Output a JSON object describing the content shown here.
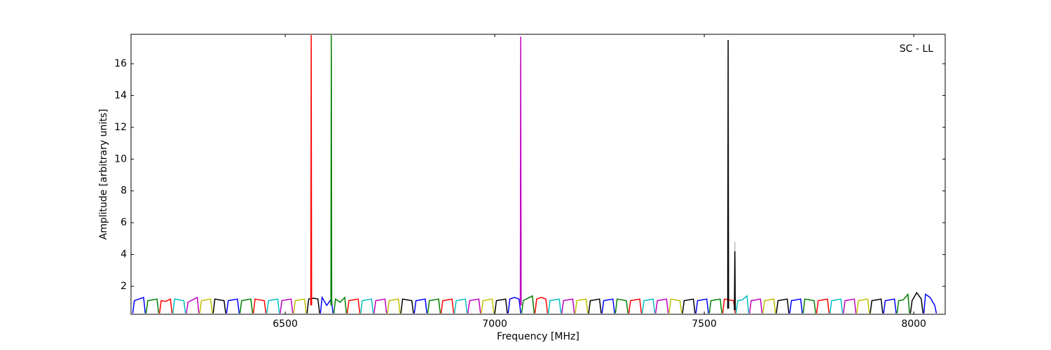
{
  "chart_data": {
    "type": "line",
    "xlabel": "Frequency [MHz]",
    "ylabel": "Amplitude [arbitrary units]",
    "annotation": "SC - LL",
    "xlim": [
      6132,
      8075
    ],
    "ylim": [
      0.24,
      17.85
    ],
    "xticks": [
      6500,
      7000,
      7500,
      8000
    ],
    "yticks": [
      2,
      4,
      6,
      8,
      10,
      12,
      14,
      16
    ],
    "series": [
      {
        "color": "#0000ff",
        "x": [
          6136,
          6140,
          6151,
          6162,
          6166
        ],
        "values": [
          0.3,
          1.1,
          1.2,
          1.3,
          0.3
        ]
      },
      {
        "color": "#008000",
        "x": [
          6168,
          6172,
          6183,
          6194,
          6198
        ],
        "values": [
          0.3,
          1.1,
          1.15,
          1.2,
          0.3
        ]
      },
      {
        "color": "#ff0000",
        "x": [
          6200,
          6204,
          6215,
          6226,
          6230
        ],
        "values": [
          0.3,
          1.1,
          1.05,
          1.2,
          0.3
        ]
      },
      {
        "color": "#00bfbf",
        "x": [
          6232,
          6236,
          6247,
          6258,
          6262
        ],
        "values": [
          0.3,
          1.2,
          1.15,
          1.1,
          0.3
        ]
      },
      {
        "color": "#bf00bf",
        "x": [
          6264,
          6268,
          6279,
          6290,
          6294
        ],
        "values": [
          0.3,
          1.0,
          1.15,
          1.3,
          0.3
        ]
      },
      {
        "color": "#bfbf00",
        "x": [
          6296,
          6300,
          6311,
          6322,
          6326
        ],
        "values": [
          0.3,
          1.1,
          1.15,
          1.2,
          0.3
        ]
      },
      {
        "color": "#000000",
        "x": [
          6328,
          6332,
          6343,
          6354,
          6358
        ],
        "values": [
          0.3,
          1.2,
          1.15,
          1.1,
          0.3
        ]
      },
      {
        "color": "#0000ff",
        "x": [
          6360,
          6364,
          6375,
          6386,
          6390
        ],
        "values": [
          0.3,
          1.1,
          1.15,
          1.2,
          0.3
        ]
      },
      {
        "color": "#008000",
        "x": [
          6392,
          6396,
          6407,
          6418,
          6422
        ],
        "values": [
          0.3,
          1.1,
          1.15,
          1.2,
          0.3
        ]
      },
      {
        "color": "#ff0000",
        "x": [
          6424,
          6428,
          6439,
          6450,
          6454
        ],
        "values": [
          0.3,
          1.2,
          1.15,
          1.1,
          0.3
        ]
      },
      {
        "color": "#00bfbf",
        "x": [
          6456,
          6460,
          6471,
          6482,
          6486
        ],
        "values": [
          0.3,
          1.1,
          1.15,
          1.2,
          0.3
        ]
      },
      {
        "color": "#bf00bf",
        "x": [
          6488,
          6492,
          6503,
          6514,
          6518
        ],
        "values": [
          0.3,
          1.1,
          1.15,
          1.2,
          0.3
        ]
      },
      {
        "color": "#bfbf00",
        "x": [
          6520,
          6524,
          6535,
          6546,
          6550
        ],
        "values": [
          0.3,
          1.1,
          1.15,
          1.2,
          0.3
        ]
      },
      {
        "color": "#000000",
        "x": [
          6552,
          6556,
          6567,
          6578,
          6582
        ],
        "values": [
          0.3,
          1.2,
          1.25,
          1.2,
          0.3
        ]
      },
      {
        "color": "#0000ff",
        "x": [
          6584,
          6588,
          6599,
          6610,
          6614
        ],
        "values": [
          0.3,
          1.3,
          0.8,
          1.2,
          0.3
        ]
      },
      {
        "color": "#008000",
        "x": [
          6616,
          6620,
          6631,
          6642,
          6646
        ],
        "values": [
          0.3,
          1.2,
          1.0,
          1.3,
          0.3
        ]
      },
      {
        "color": "#ff0000",
        "x": [
          6648,
          6652,
          6663,
          6674,
          6678
        ],
        "values": [
          0.3,
          1.1,
          1.15,
          1.2,
          0.3
        ]
      },
      {
        "color": "#00bfbf",
        "x": [
          6680,
          6684,
          6695,
          6706,
          6710
        ],
        "values": [
          0.3,
          1.1,
          1.15,
          1.2,
          0.3
        ]
      },
      {
        "color": "#bf00bf",
        "x": [
          6712,
          6716,
          6727,
          6738,
          6742
        ],
        "values": [
          0.3,
          1.1,
          1.15,
          1.2,
          0.3
        ]
      },
      {
        "color": "#bfbf00",
        "x": [
          6744,
          6748,
          6759,
          6770,
          6774
        ],
        "values": [
          0.3,
          1.1,
          1.15,
          1.2,
          0.3
        ]
      },
      {
        "color": "#000000",
        "x": [
          6776,
          6780,
          6791,
          6802,
          6806
        ],
        "values": [
          0.3,
          1.2,
          1.15,
          1.1,
          0.3
        ]
      },
      {
        "color": "#0000ff",
        "x": [
          6808,
          6812,
          6823,
          6834,
          6838
        ],
        "values": [
          0.3,
          1.1,
          1.15,
          1.2,
          0.3
        ]
      },
      {
        "color": "#008000",
        "x": [
          6840,
          6844,
          6855,
          6866,
          6870
        ],
        "values": [
          0.3,
          1.1,
          1.15,
          1.2,
          0.3
        ]
      },
      {
        "color": "#ff0000",
        "x": [
          6872,
          6876,
          6887,
          6898,
          6902
        ],
        "values": [
          0.3,
          1.1,
          1.15,
          1.2,
          0.3
        ]
      },
      {
        "color": "#00bfbf",
        "x": [
          6904,
          6908,
          6919,
          6930,
          6934
        ],
        "values": [
          0.3,
          1.1,
          1.15,
          1.2,
          0.3
        ]
      },
      {
        "color": "#bf00bf",
        "x": [
          6936,
          6940,
          6951,
          6962,
          6966
        ],
        "values": [
          0.3,
          1.1,
          1.15,
          1.2,
          0.3
        ]
      },
      {
        "color": "#bfbf00",
        "x": [
          6968,
          6972,
          6983,
          6994,
          6998
        ],
        "values": [
          0.3,
          1.1,
          1.15,
          1.2,
          0.3
        ]
      },
      {
        "color": "#000000",
        "x": [
          7000,
          7004,
          7015,
          7026,
          7030
        ],
        "values": [
          0.3,
          1.1,
          1.15,
          1.2,
          0.3
        ]
      },
      {
        "color": "#0000ff",
        "x": [
          7032,
          7036,
          7047,
          7058,
          7062
        ],
        "values": [
          0.3,
          1.2,
          1.3,
          1.2,
          0.3
        ]
      },
      {
        "color": "#008000",
        "x": [
          7064,
          7068,
          7079,
          7090,
          7094
        ],
        "values": [
          0.3,
          1.1,
          1.25,
          1.4,
          0.3
        ]
      },
      {
        "color": "#ff0000",
        "x": [
          7096,
          7100,
          7111,
          7122,
          7126
        ],
        "values": [
          0.3,
          1.2,
          1.3,
          1.2,
          0.3
        ]
      },
      {
        "color": "#00bfbf",
        "x": [
          7128,
          7132,
          7143,
          7154,
          7158
        ],
        "values": [
          0.3,
          1.1,
          1.15,
          1.2,
          0.3
        ]
      },
      {
        "color": "#bf00bf",
        "x": [
          7160,
          7164,
          7175,
          7186,
          7190
        ],
        "values": [
          0.3,
          1.1,
          1.15,
          1.2,
          0.3
        ]
      },
      {
        "color": "#bfbf00",
        "x": [
          7192,
          7196,
          7207,
          7218,
          7222
        ],
        "values": [
          0.3,
          1.1,
          1.15,
          1.2,
          0.3
        ]
      },
      {
        "color": "#000000",
        "x": [
          7224,
          7228,
          7239,
          7250,
          7254
        ],
        "values": [
          0.3,
          1.1,
          1.15,
          1.2,
          0.3
        ]
      },
      {
        "color": "#0000ff",
        "x": [
          7256,
          7260,
          7271,
          7282,
          7286
        ],
        "values": [
          0.3,
          1.1,
          1.15,
          1.2,
          0.3
        ]
      },
      {
        "color": "#008000",
        "x": [
          7288,
          7292,
          7303,
          7314,
          7318
        ],
        "values": [
          0.3,
          1.2,
          1.15,
          1.1,
          0.3
        ]
      },
      {
        "color": "#ff0000",
        "x": [
          7320,
          7324,
          7335,
          7346,
          7350
        ],
        "values": [
          0.3,
          1.1,
          1.15,
          1.2,
          0.3
        ]
      },
      {
        "color": "#00bfbf",
        "x": [
          7352,
          7356,
          7367,
          7378,
          7382
        ],
        "values": [
          0.3,
          1.1,
          1.15,
          1.2,
          0.3
        ]
      },
      {
        "color": "#bf00bf",
        "x": [
          7384,
          7388,
          7399,
          7410,
          7414
        ],
        "values": [
          0.3,
          1.1,
          1.15,
          1.2,
          0.3
        ]
      },
      {
        "color": "#bfbf00",
        "x": [
          7416,
          7420,
          7431,
          7442,
          7446
        ],
        "values": [
          0.3,
          1.2,
          1.15,
          1.1,
          0.3
        ]
      },
      {
        "color": "#000000",
        "x": [
          7448,
          7452,
          7463,
          7474,
          7478
        ],
        "values": [
          0.3,
          1.1,
          1.15,
          1.2,
          0.3
        ]
      },
      {
        "color": "#0000ff",
        "x": [
          7480,
          7484,
          7495,
          7506,
          7510
        ],
        "values": [
          0.3,
          1.1,
          1.15,
          1.2,
          0.3
        ]
      },
      {
        "color": "#008000",
        "x": [
          7512,
          7516,
          7527,
          7538,
          7542
        ],
        "values": [
          0.3,
          1.1,
          1.15,
          1.2,
          0.3
        ]
      },
      {
        "color": "#ff0000",
        "x": [
          7544,
          7548,
          7559,
          7570,
          7574
        ],
        "values": [
          0.3,
          1.2,
          1.15,
          1.1,
          0.3
        ]
      },
      {
        "color": "#00bfbf",
        "x": [
          7576,
          7580,
          7591,
          7602,
          7606
        ],
        "values": [
          0.3,
          1.1,
          1.15,
          1.4,
          0.3
        ]
      },
      {
        "color": "#bf00bf",
        "x": [
          7608,
          7612,
          7623,
          7634,
          7638
        ],
        "values": [
          0.3,
          1.1,
          1.15,
          1.2,
          0.3
        ]
      },
      {
        "color": "#bfbf00",
        "x": [
          7640,
          7644,
          7655,
          7666,
          7670
        ],
        "values": [
          0.3,
          1.1,
          1.15,
          1.2,
          0.3
        ]
      },
      {
        "color": "#000000",
        "x": [
          7672,
          7676,
          7687,
          7698,
          7702
        ],
        "values": [
          0.3,
          1.1,
          1.15,
          1.2,
          0.3
        ]
      },
      {
        "color": "#0000ff",
        "x": [
          7704,
          7708,
          7719,
          7730,
          7734
        ],
        "values": [
          0.3,
          1.1,
          1.15,
          1.2,
          0.3
        ]
      },
      {
        "color": "#008000",
        "x": [
          7736,
          7740,
          7751,
          7762,
          7766
        ],
        "values": [
          0.3,
          1.2,
          1.15,
          1.1,
          0.3
        ]
      },
      {
        "color": "#ff0000",
        "x": [
          7768,
          7772,
          7783,
          7794,
          7798
        ],
        "values": [
          0.3,
          1.1,
          1.15,
          1.2,
          0.3
        ]
      },
      {
        "color": "#00bfbf",
        "x": [
          7800,
          7804,
          7815,
          7826,
          7830
        ],
        "values": [
          0.3,
          1.1,
          1.15,
          1.2,
          0.3
        ]
      },
      {
        "color": "#bf00bf",
        "x": [
          7832,
          7836,
          7847,
          7858,
          7862
        ],
        "values": [
          0.3,
          1.1,
          1.15,
          1.2,
          0.3
        ]
      },
      {
        "color": "#bfbf00",
        "x": [
          7864,
          7868,
          7879,
          7890,
          7894
        ],
        "values": [
          0.3,
          1.1,
          1.15,
          1.2,
          0.3
        ]
      },
      {
        "color": "#000000",
        "x": [
          7896,
          7900,
          7911,
          7922,
          7926
        ],
        "values": [
          0.3,
          1.1,
          1.15,
          1.2,
          0.3
        ]
      },
      {
        "color": "#0000ff",
        "x": [
          7928,
          7932,
          7943,
          7954,
          7958
        ],
        "values": [
          0.3,
          1.1,
          1.15,
          1.2,
          0.3
        ]
      },
      {
        "color": "#008000",
        "x": [
          7960,
          7964,
          7975,
          7986,
          7990
        ],
        "values": [
          0.3,
          1.1,
          1.15,
          1.5,
          0.3
        ]
      },
      {
        "color": "#000000",
        "x": [
          7992,
          7996,
          8007,
          8018,
          8022
        ],
        "values": [
          0.3,
          1.1,
          1.6,
          1.2,
          0.3
        ]
      },
      {
        "color": "#0000ff",
        "x": [
          8024,
          8028,
          8039,
          8050,
          8054
        ],
        "values": [
          0.3,
          1.5,
          1.3,
          0.8,
          0.3
        ]
      },
      {
        "color": "#ff0000",
        "x": [
          6561,
          6562,
          6563
        ],
        "values": [
          0.8,
          17.8,
          0.8
        ]
      },
      {
        "color": "#008000",
        "x": [
          6609,
          6610,
          6611
        ],
        "values": [
          0.8,
          17.8,
          0.8
        ]
      },
      {
        "color": "#bf00bf",
        "x": [
          7061,
          7062,
          7063
        ],
        "values": [
          0.8,
          17.7,
          0.8
        ]
      },
      {
        "color": "#bfbfbf",
        "x": [
          7572,
          7573,
          7574
        ],
        "values": [
          0.6,
          4.8,
          0.6
        ]
      },
      {
        "color": "#000000",
        "x": [
          7556,
          7557,
          7558
        ],
        "values": [
          0.6,
          17.5,
          0.6
        ]
      },
      {
        "color": "#000000",
        "x": [
          7572,
          7573,
          7574
        ],
        "values": [
          0.5,
          4.2,
          0.5
        ]
      }
    ]
  }
}
